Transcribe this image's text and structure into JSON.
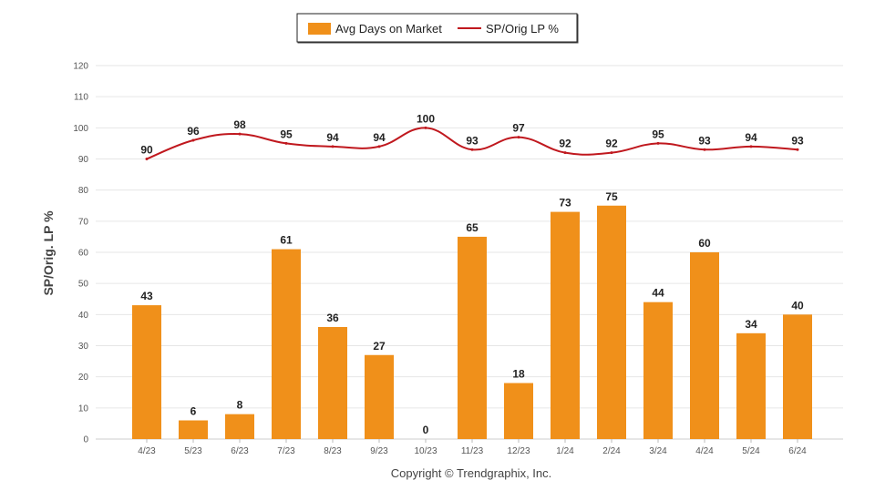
{
  "chart_data": {
    "type": "bar",
    "categories": [
      "4/23",
      "5/23",
      "6/23",
      "7/23",
      "8/23",
      "9/23",
      "10/23",
      "11/23",
      "12/23",
      "1/24",
      "2/24",
      "3/24",
      "4/24",
      "5/24",
      "6/24"
    ],
    "series": [
      {
        "name": "Avg Days on Market",
        "type": "bar",
        "color": "#F0901A",
        "values": [
          43,
          6,
          8,
          61,
          36,
          27,
          0,
          65,
          18,
          73,
          75,
          44,
          60,
          34,
          40
        ]
      },
      {
        "name": "SP/Orig LP %",
        "type": "line",
        "color": "#C0181E",
        "values": [
          90,
          96,
          98,
          95,
          94,
          94,
          100,
          93,
          97,
          92,
          92,
          95,
          93,
          94,
          93
        ]
      }
    ],
    "title": "",
    "xlabel": "",
    "ylabel": "SP/Orig. LP %",
    "ylim": [
      0,
      120
    ],
    "yticks": [
      0,
      10,
      20,
      30,
      40,
      50,
      60,
      70,
      80,
      90,
      100,
      110,
      120
    ],
    "legend": "top-center",
    "grid": true
  },
  "footer": {
    "copyright": "Copyright © Trendgraphix, Inc."
  }
}
